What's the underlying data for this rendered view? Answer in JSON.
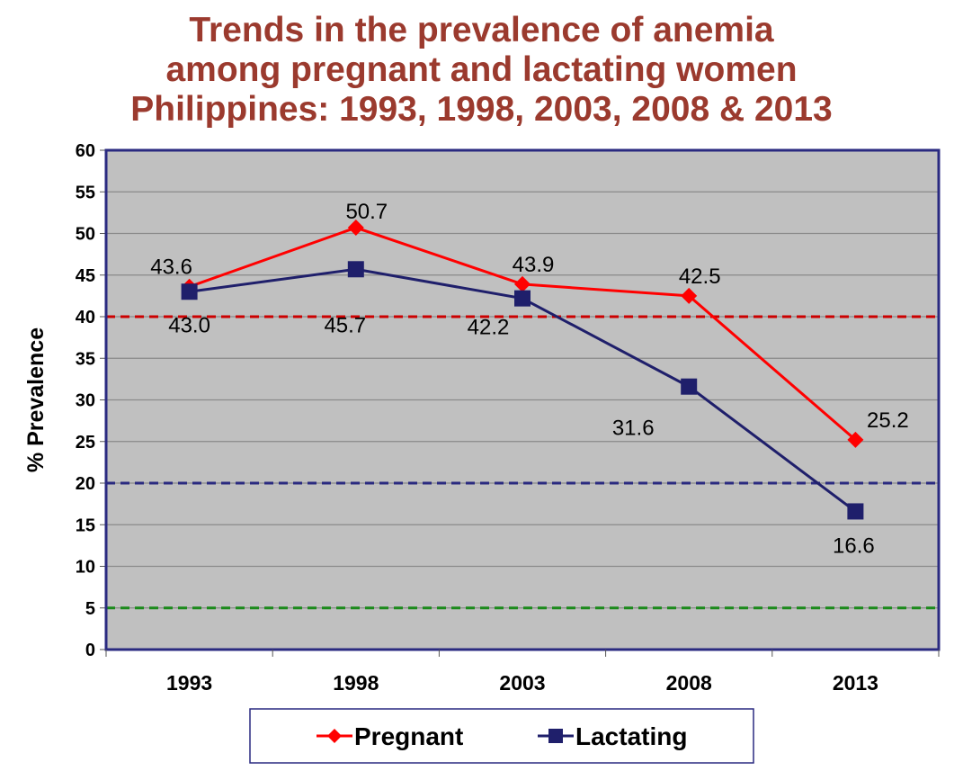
{
  "chart_data": {
    "type": "line",
    "title_lines": [
      "Trends in the prevalence of anemia",
      "among pregnant and lactating women",
      "Philippines: 1993, 1998, 2003, 2008 & 2013"
    ],
    "ylabel": "% Prevalence",
    "xlabel": "",
    "categories": [
      "1993",
      "1998",
      "2003",
      "2008",
      "2013"
    ],
    "ylim": [
      0,
      60
    ],
    "yticks": [
      "0",
      "5",
      "10",
      "15",
      "20",
      "25",
      "30",
      "35",
      "40",
      "45",
      "50",
      "55",
      "60"
    ],
    "grid": true,
    "legend_placement": "bottom",
    "series": [
      {
        "name": "Pregnant",
        "values": [
          43.6,
          50.7,
          43.9,
          42.5,
          25.2
        ],
        "labels": [
          "43.6",
          "50.7",
          "43.9",
          "42.5",
          "25.2"
        ],
        "color": "#ff0000",
        "marker": "diamond"
      },
      {
        "name": "Lactating",
        "values": [
          43.0,
          45.7,
          42.2,
          31.6,
          16.6
        ],
        "labels": [
          "43.0",
          "45.7",
          "42.2",
          "31.6",
          "16.6"
        ],
        "color": "#1f1f6b",
        "marker": "square"
      }
    ],
    "reference_lines": [
      {
        "value": 40,
        "color": "#cc0000",
        "style": "dashed"
      },
      {
        "value": 20,
        "color": "#2a2a80",
        "style": "dashed"
      },
      {
        "value": 5,
        "color": "#1a8a1a",
        "style": "dashed"
      }
    ],
    "plot_background": "#c0c0c0",
    "border_color": "#2a2a80"
  }
}
